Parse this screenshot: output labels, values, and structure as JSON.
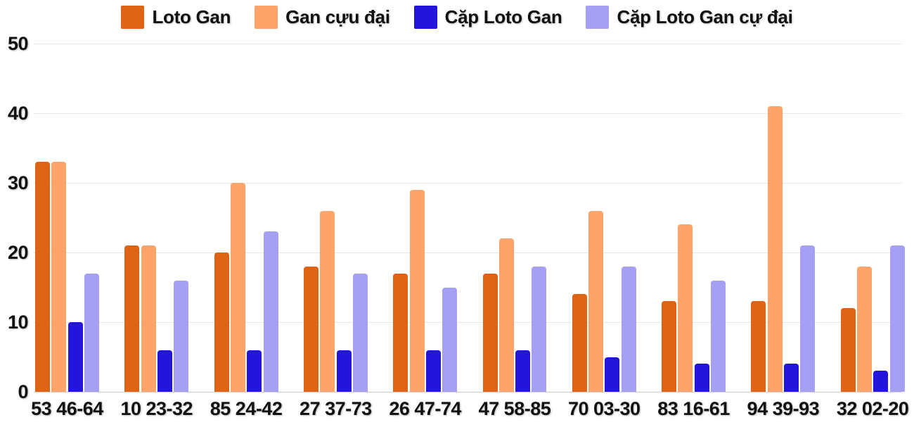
{
  "chart_data": {
    "type": "bar",
    "title": "",
    "categories": [
      "53 46-64",
      "10 23-32",
      "85 24-42",
      "27 37-73",
      "26 47-74",
      "47 58-85",
      "70 03-30",
      "83 16-61",
      "94 39-93",
      "32 02-20"
    ],
    "series": [
      {
        "name": "Loto Gan",
        "color": "#dc6414",
        "values": [
          33,
          21,
          20,
          18,
          17,
          17,
          14,
          13,
          13,
          12
        ]
      },
      {
        "name": "Gan cựu đại",
        "color": "#fca469",
        "values": [
          33,
          21,
          30,
          26,
          29,
          22,
          26,
          24,
          41,
          18
        ]
      },
      {
        "name": "Cặp Loto Gan",
        "color": "#2315dc",
        "values": [
          10,
          6,
          6,
          6,
          6,
          6,
          5,
          4,
          4,
          3
        ]
      },
      {
        "name": "Cặp Loto Gan cự đại",
        "color": "#a5a0f3",
        "values": [
          17,
          16,
          23,
          17,
          15,
          18,
          18,
          16,
          21,
          21
        ]
      }
    ],
    "ylim": [
      0,
      50
    ],
    "yticks": [
      0,
      10,
      20,
      30,
      40,
      50
    ],
    "grid": true,
    "legend_position": "top"
  },
  "colors": {
    "grid": "#e7e7e7",
    "axis_line": "#c9c9c9",
    "text": "#111111",
    "background": "#ffffff"
  }
}
